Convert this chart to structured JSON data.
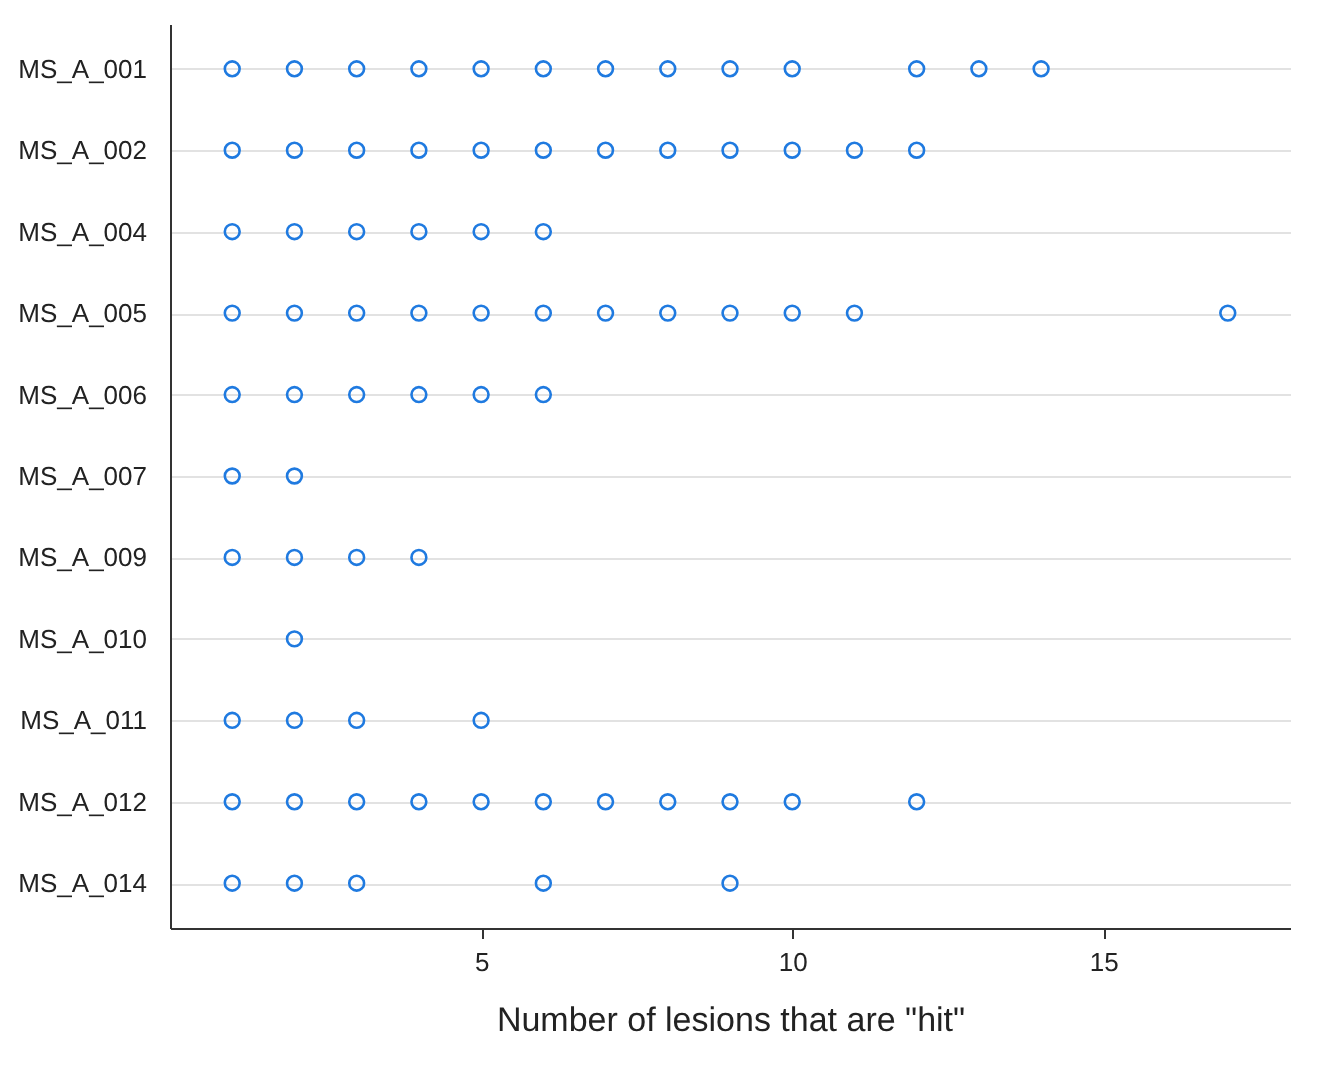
{
  "chart_data": {
    "type": "scatter",
    "orientation": "horizontal",
    "xlabel": "Number of lesions that are \"hit\"",
    "categories": [
      "MS_A_001",
      "MS_A_002",
      "MS_A_004",
      "MS_A_005",
      "MS_A_006",
      "MS_A_007",
      "MS_A_009",
      "MS_A_010",
      "MS_A_011",
      "MS_A_012",
      "MS_A_014"
    ],
    "series": [
      {
        "color": "#1f7ae0",
        "values": [
          1,
          1,
          1,
          1,
          1,
          1,
          1,
          2,
          1,
          1,
          1
        ]
      },
      {
        "color": "#1f7ae0",
        "values": [
          2,
          2,
          2,
          2,
          2,
          2,
          2,
          null,
          2,
          2,
          2
        ]
      },
      {
        "color": "#1f7ae0",
        "values": [
          3,
          3,
          3,
          3,
          3,
          null,
          3,
          null,
          3,
          3,
          3
        ]
      },
      {
        "color": "#1f7ae0",
        "values": [
          4,
          4,
          4,
          4,
          4,
          null,
          4,
          null,
          5,
          4,
          6
        ]
      },
      {
        "color": "#1f7ae0",
        "values": [
          5,
          5,
          5,
          5,
          5,
          null,
          null,
          null,
          null,
          5,
          9
        ]
      },
      {
        "color": "#1f7ae0",
        "values": [
          6,
          6,
          6,
          6,
          6,
          null,
          null,
          null,
          null,
          6,
          null
        ]
      },
      {
        "color": "#1f7ae0",
        "values": [
          7,
          7,
          null,
          7,
          null,
          null,
          null,
          null,
          null,
          7,
          null
        ]
      },
      {
        "color": "#1f7ae0",
        "values": [
          8,
          8,
          null,
          8,
          null,
          null,
          null,
          null,
          null,
          8,
          null
        ]
      },
      {
        "color": "#1f7ae0",
        "values": [
          9,
          9,
          null,
          9,
          null,
          null,
          null,
          null,
          null,
          9,
          null
        ]
      },
      {
        "color": "#1f7ae0",
        "values": [
          10,
          10,
          null,
          10,
          null,
          null,
          null,
          null,
          null,
          10,
          null
        ]
      },
      {
        "color": "#1f7ae0",
        "values": [
          12,
          11,
          null,
          11,
          null,
          null,
          null,
          null,
          null,
          12,
          null
        ]
      },
      {
        "color": "#1f7ae0",
        "values": [
          13,
          12,
          null,
          17,
          null,
          null,
          null,
          null,
          null,
          null,
          null
        ]
      },
      {
        "color": "#1f7ae0",
        "values": [
          14,
          null,
          null,
          null,
          null,
          null,
          null,
          null,
          null,
          null,
          null
        ]
      }
    ],
    "xlim": [
      0,
      18
    ],
    "xticks": [
      5,
      10,
      15
    ],
    "grid": "y",
    "marker": "circle",
    "legend": false
  }
}
